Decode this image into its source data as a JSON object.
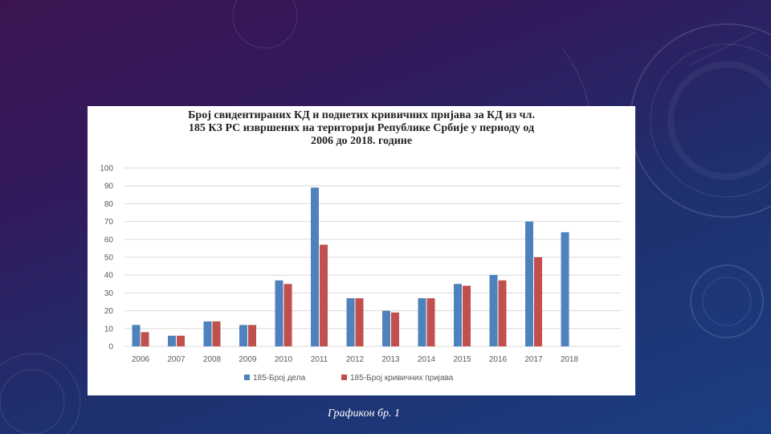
{
  "caption": "Графикон бр. 1",
  "colors": {
    "series1": "#4f81bd",
    "series2": "#c0504d",
    "grid": "#d9d9d9",
    "axis_text": "#595959"
  },
  "chart_data": {
    "type": "bar",
    "title": "Број свидентираних КД и поднетих кривичних пријава за КД из чл. 185 КЗ РС извршених на територији Републике Србије у периоду од 2006 до 2018. године",
    "title_lines": [
      "Број свидентираних КД и поднетих кривичних пријава за КД из чл.",
      "185 КЗ РС извршених на територији Републике Србије у периоду од",
      "2006 до 2018. године"
    ],
    "categories": [
      "2006",
      "2007",
      "2008",
      "2009",
      "2010",
      "2011",
      "2012",
      "2013",
      "2014",
      "2015",
      "2016",
      "2017",
      "2018"
    ],
    "series": [
      {
        "name": "185-Број дела",
        "values": [
          12,
          6,
          14,
          12,
          37,
          89,
          27,
          20,
          27,
          35,
          40,
          70,
          64
        ]
      },
      {
        "name": "185-Број кривичних пријава",
        "values": [
          8,
          6,
          14,
          12,
          35,
          57,
          27,
          19,
          27,
          34,
          37,
          50,
          null
        ]
      }
    ],
    "ylim": [
      0,
      100
    ],
    "yticks": [
      0,
      10,
      20,
      30,
      40,
      50,
      60,
      70,
      80,
      90,
      100
    ],
    "xlabel": "",
    "ylabel": "",
    "grid": true,
    "legend": "bottom"
  }
}
